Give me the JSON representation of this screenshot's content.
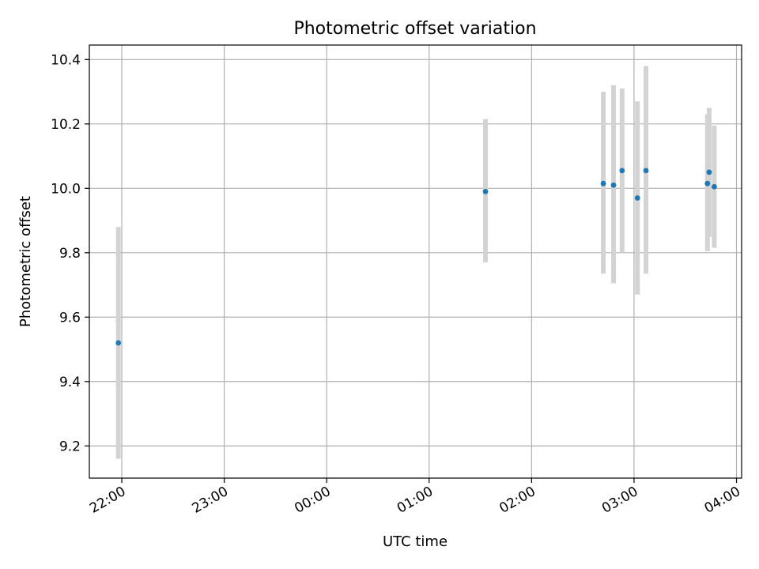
{
  "chart_data": {
    "type": "scatter",
    "title": "Photometric offset variation",
    "xlabel": "UTC time",
    "ylabel": "Photometric offset",
    "x_unit": "UTC hour of day",
    "xlim": [
      "21:41",
      "04:03"
    ],
    "ylim": [
      9.1,
      10.445
    ],
    "x_ticks": [
      "22:00",
      "23:00",
      "00:00",
      "01:00",
      "02:00",
      "03:00",
      "04:00"
    ],
    "y_ticks": [
      "9.2",
      "9.4",
      "9.6",
      "9.8",
      "10.0",
      "10.2",
      "10.4"
    ],
    "y_tick_values": [
      9.2,
      9.4,
      9.6,
      9.8,
      10.0,
      10.2,
      10.4
    ],
    "grid": true,
    "point_color": "#1f77b4",
    "errorbar_color": "#d3d3d3",
    "points": [
      {
        "time": "21:58",
        "y": 9.52,
        "y_low": 9.16,
        "y_high": 9.88
      },
      {
        "time": "01:33",
        "y": 9.99,
        "y_low": 9.77,
        "y_high": 10.215
      },
      {
        "time": "02:42",
        "y": 10.015,
        "y_low": 9.735,
        "y_high": 10.3
      },
      {
        "time": "02:48",
        "y": 10.01,
        "y_low": 9.705,
        "y_high": 10.32
      },
      {
        "time": "02:53",
        "y": 10.055,
        "y_low": 9.8,
        "y_high": 10.31
      },
      {
        "time": "03:02",
        "y": 9.97,
        "y_low": 9.67,
        "y_high": 10.27
      },
      {
        "time": "03:07",
        "y": 10.055,
        "y_low": 9.735,
        "y_high": 10.38
      },
      {
        "time": "03:43",
        "y": 10.015,
        "y_low": 9.805,
        "y_high": 10.23
      },
      {
        "time": "03:44",
        "y": 10.05,
        "y_low": 9.85,
        "y_high": 10.25
      },
      {
        "time": "03:47",
        "y": 10.005,
        "y_low": 9.815,
        "y_high": 10.195
      }
    ]
  }
}
